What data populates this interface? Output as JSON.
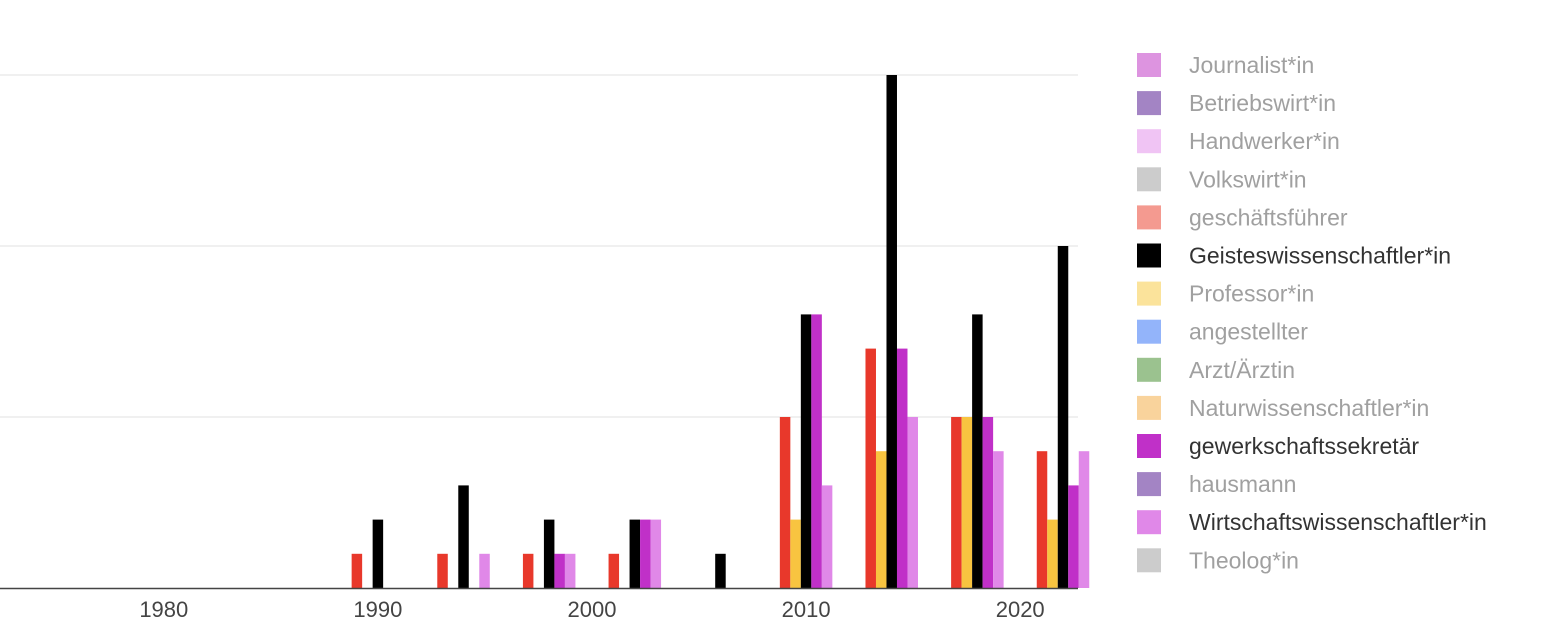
{
  "chart_data": {
    "type": "bar",
    "barmode": "grouped",
    "grid": true,
    "legend_placement": "right",
    "x_ticks": [
      1980,
      1990,
      2000,
      2010,
      2020
    ],
    "y_range": [
      0,
      15
    ],
    "y_grid_values": [
      5,
      10,
      15
    ],
    "bins": [
      {
        "x": 1990,
        "values": {
          "geschaeftsfuehrer": 1,
          "geistes": 2
        }
      },
      {
        "x": 1994,
        "values": {
          "geschaeftsfuehrer": 1,
          "geistes": 3,
          "wirtschaftswiss": 1
        }
      },
      {
        "x": 1998,
        "values": {
          "geschaeftsfuehrer": 1,
          "geistes": 2,
          "gewerkschaft": 1,
          "wirtschaftswiss": 1
        }
      },
      {
        "x": 2002,
        "values": {
          "geschaeftsfuehrer": 1,
          "geistes": 2,
          "gewerkschaft": 2,
          "wirtschaftswiss": 2
        }
      },
      {
        "x": 2006,
        "values": {
          "geistes": 1
        }
      },
      {
        "x": 2010,
        "values": {
          "geschaeftsfuehrer": 5,
          "professor": 2,
          "geistes": 8,
          "gewerkschaft": 8,
          "wirtschaftswiss": 3
        }
      },
      {
        "x": 2014,
        "values": {
          "geschaeftsfuehrer": 7,
          "professor": 4,
          "geistes": 15,
          "gewerkschaft": 7,
          "wirtschaftswiss": 5
        }
      },
      {
        "x": 2018,
        "values": {
          "geschaeftsfuehrer": 5,
          "professor": 5,
          "geistes": 8,
          "gewerkschaft": 5,
          "wirtschaftswiss": 4
        }
      },
      {
        "x": 2022,
        "values": {
          "geschaeftsfuehrer": 4,
          "professor": 2,
          "geistes": 10,
          "gewerkschaft": 3,
          "wirtschaftswiss": 4
        }
      }
    ],
    "bar_order": [
      "geschaeftsfuehrer",
      "professor",
      "geistes",
      "gewerkschaft",
      "wirtschaftswiss"
    ],
    "series_colors": {
      "geschaeftsfuehrer": "#e8382b",
      "professor": "#f8c440",
      "geistes": "#000000",
      "gewerkschaft": "#c030c8",
      "wirtschaftswiss": "#e088e8"
    },
    "legend": [
      {
        "key": "journalist",
        "label": "Journalist*in",
        "color": "#dd94e0",
        "active": false
      },
      {
        "key": "betriebswirt",
        "label": "Betriebswirt*in",
        "color": "#a384c4",
        "active": false
      },
      {
        "key": "handwerker",
        "label": "Handwerker*in",
        "color": "#f0c4f4",
        "active": false
      },
      {
        "key": "volkswirt",
        "label": "Volkswirt*in",
        "color": "#cccccc",
        "active": false
      },
      {
        "key": "geschaeftsfuehrer",
        "label": "geschäftsführer",
        "color": "#f49a90",
        "active": false
      },
      {
        "key": "geistes",
        "label": "Geisteswissenschaftler*in",
        "color": "#000000",
        "active": true
      },
      {
        "key": "professor",
        "label": "Professor*in",
        "color": "#fbe39b",
        "active": false
      },
      {
        "key": "angestellter",
        "label": "angestellter",
        "color": "#93b4fa",
        "active": false
      },
      {
        "key": "arzt",
        "label": "Arzt/Ärztin",
        "color": "#9bc28f",
        "active": false
      },
      {
        "key": "naturwiss",
        "label": "Naturwissenschaftler*in",
        "color": "#f9d39c",
        "active": false
      },
      {
        "key": "gewerkschaft",
        "label": "gewerkschaftssekretär",
        "color": "#c030c8",
        "active": true
      },
      {
        "key": "hausmann",
        "label": "hausmann",
        "color": "#a384c4",
        "active": false
      },
      {
        "key": "wirtschaftswiss",
        "label": "Wirtschaftswissenschaftler*in",
        "color": "#e088e8",
        "active": true
      },
      {
        "key": "theolog",
        "label": "Theolog*in",
        "color": "#cccccc",
        "active": false
      }
    ],
    "legend_text_active": "#333333",
    "legend_text_inactive": "#a0a0a0"
  }
}
